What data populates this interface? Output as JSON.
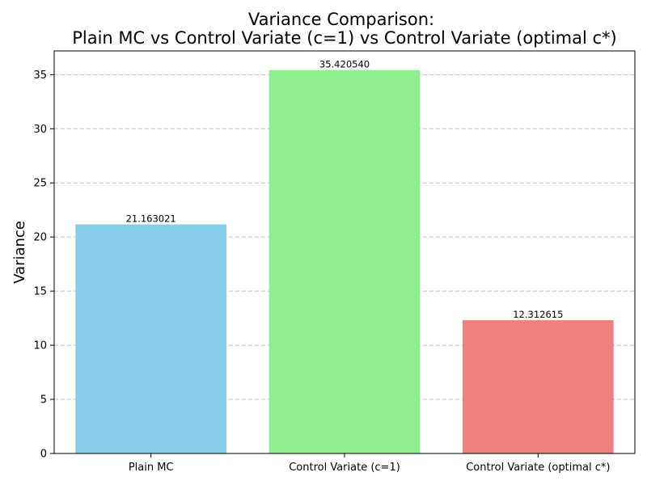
{
  "chart_data": {
    "type": "bar",
    "title_lines": [
      "Variance Comparison:",
      "Plain MC vs Control Variate (c=1) vs Control Variate (optimal c*)"
    ],
    "xlabel": "",
    "ylabel": "Variance",
    "categories": [
      "Plain MC",
      "Control Variate (c=1)",
      "Control Variate (optimal c*)"
    ],
    "values": [
      21.163021,
      35.42054,
      12.312615
    ],
    "value_labels": [
      "21.163021",
      "35.420540",
      "12.312615"
    ],
    "colors": [
      "#87ceeb",
      "#90ee90",
      "#f08080"
    ],
    "ylim": [
      0,
      37.19
    ],
    "yticks": [
      0,
      5,
      10,
      15,
      20,
      25,
      30,
      35
    ],
    "grid": "y-dashed"
  }
}
